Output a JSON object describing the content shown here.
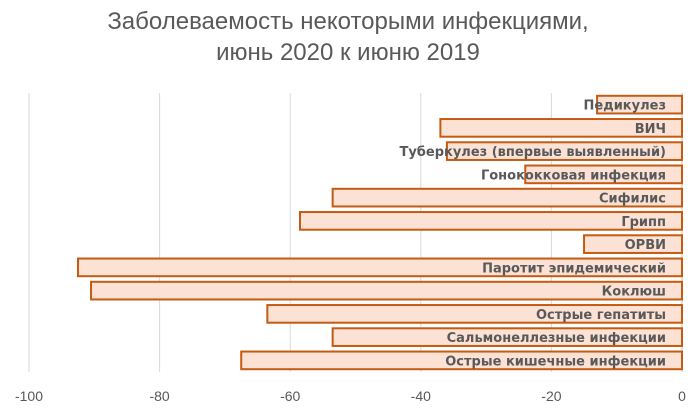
{
  "chart_data": {
    "type": "bar",
    "orientation": "horizontal",
    "title": "Заболеваемость некоторыми инфекциями, июнь 2020 к июню 2019",
    "title_lines": [
      "Заболеваемость некоторыми инфекциями,",
      "июнь 2020 к июню 2019"
    ],
    "xlabel": "",
    "ylabel": "",
    "xlim": [
      -100,
      0
    ],
    "x_ticks": [
      -100,
      -80,
      -60,
      -40,
      -20,
      0
    ],
    "x_tick_labels": [
      "-100",
      "-80",
      "-60",
      "-40",
      "-20",
      "0"
    ],
    "grid": true,
    "legend": "none",
    "categories": [
      "Педикулез",
      "ВИЧ",
      "Туберкулез (впервые выявленный)",
      "Гонококковая инфекция",
      "Сифилис",
      "Грипп",
      "ОРВИ",
      "Паротит эпидемический",
      "Коклюш",
      "Острые гепатиты",
      "Сальмонеллезные инфекции",
      "Острые кишечные инфекции"
    ],
    "values": [
      -13,
      -37,
      -36,
      -24,
      -53.5,
      -58.5,
      -15,
      -92.5,
      -90.5,
      -63.5,
      -53.5,
      -67.5
    ],
    "colors": {
      "bar_fill": "#fbe2d5",
      "bar_stroke": "#c55a11",
      "grid": "#d9d9d9",
      "text": "#595959"
    }
  }
}
